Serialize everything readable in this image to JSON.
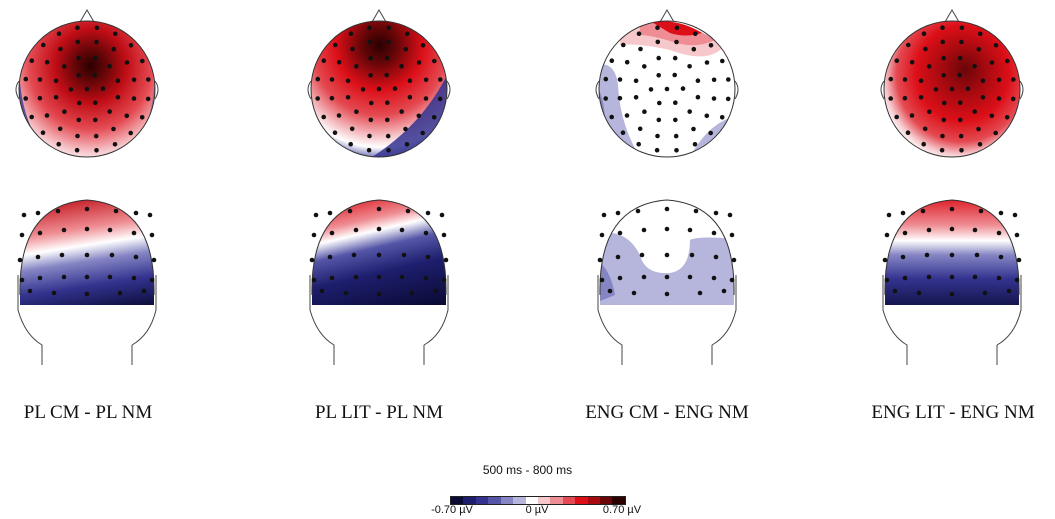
{
  "conditions": [
    {
      "label": "PL CM - PL NM"
    },
    {
      "label": "PL LIT - PL NM"
    },
    {
      "label": "ENG CM - ENG NM"
    },
    {
      "label": "ENG LIT - ENG NM"
    }
  ],
  "time_window": "500 ms - 800 ms",
  "colorbar": {
    "min_label": "-0.70 µV",
    "mid_label": "0 µV",
    "max_label": "0.70 µV",
    "colors": [
      "#0a0a35",
      "#1e1e6e",
      "#33338f",
      "#5656a8",
      "#8585c4",
      "#b6b6dc",
      "#ffffff",
      "#f6c8cc",
      "#ee8d93",
      "#e44a52",
      "#dc0f18",
      "#a80a10",
      "#6a0608",
      "#2a0000"
    ]
  },
  "views": [
    "top",
    "back"
  ]
}
